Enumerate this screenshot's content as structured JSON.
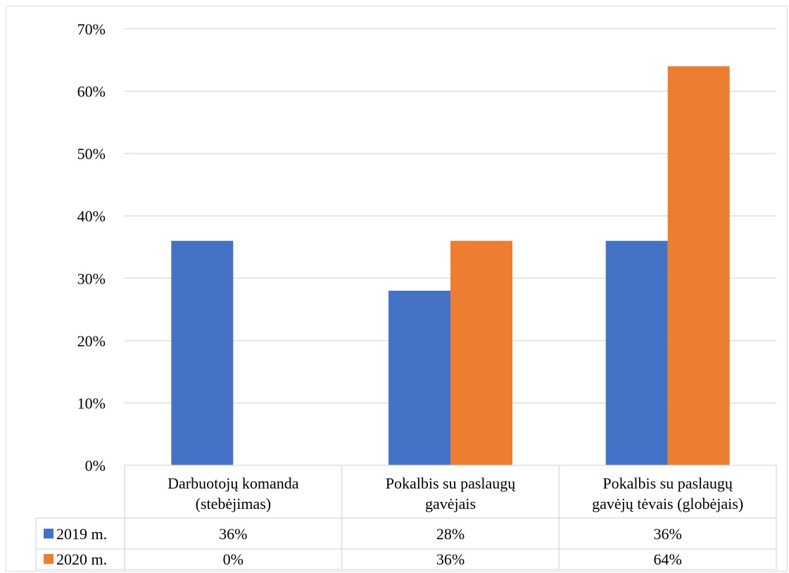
{
  "chart_data": {
    "type": "bar",
    "categories": [
      [
        "Darbuotojų komanda",
        "(stebėjimas)"
      ],
      [
        "Pokalbis su paslaugų",
        "gavėjais"
      ],
      [
        "Pokalbis su paslaugų",
        "gavėjų tėvais (globėjais)"
      ]
    ],
    "series": [
      {
        "name": "2019 m.",
        "color": "#4472c4",
        "values": [
          36,
          28,
          36
        ],
        "labels": [
          "36%",
          "28%",
          "36%"
        ]
      },
      {
        "name": "2020 m.",
        "color": "#ed7d31",
        "values": [
          0,
          36,
          64
        ],
        "labels": [
          "0%",
          "36%",
          "64%"
        ]
      }
    ],
    "y_ticks": [
      "0%",
      "10%",
      "20%",
      "30%",
      "40%",
      "50%",
      "60%",
      "70%"
    ],
    "ylim": [
      0,
      70
    ],
    "grid": true,
    "legend": "data-table"
  }
}
